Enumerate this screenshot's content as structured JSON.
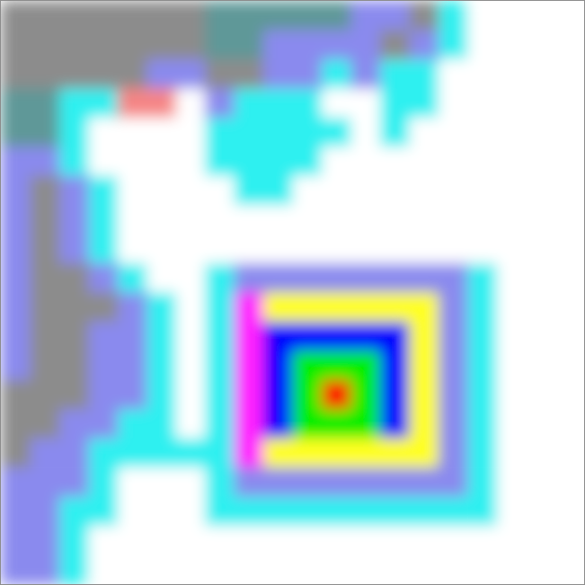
{
  "chart_data": {
    "type": "heatmap",
    "tick_labels": false,
    "colors": [
      "#ffffff",
      "#2ef0f0",
      "#8a8aee",
      "#ff22ff",
      "#ffff22",
      "#8c8c8c",
      "#0000ff",
      "#00ee00",
      "#ff0000",
      "#5f9898",
      "#f58585"
    ],
    "cells": [
      [
        5,
        5,
        5,
        5,
        5,
        5,
        5,
        9,
        9,
        9,
        9,
        9,
        2,
        2,
        5,
        1,
        0,
        0,
        0,
        0
      ],
      [
        5,
        5,
        5,
        5,
        5,
        5,
        5,
        9,
        9,
        2,
        2,
        2,
        2,
        5,
        2,
        1,
        0,
        0,
        0,
        0
      ],
      [
        5,
        5,
        5,
        5,
        5,
        2,
        2,
        5,
        5,
        2,
        2,
        1,
        2,
        1,
        1,
        0,
        0,
        0,
        0,
        0
      ],
      [
        9,
        9,
        1,
        1,
        10,
        10,
        0,
        2,
        1,
        1,
        1,
        0,
        0,
        1,
        1,
        0,
        0,
        0,
        0,
        0
      ],
      [
        9,
        9,
        1,
        0,
        0,
        0,
        0,
        1,
        1,
        1,
        1,
        1,
        0,
        1,
        0,
        0,
        0,
        0,
        0,
        0
      ],
      [
        2,
        2,
        1,
        0,
        0,
        0,
        0,
        1,
        1,
        1,
        1,
        0,
        0,
        0,
        0,
        0,
        0,
        0,
        0,
        0
      ],
      [
        2,
        5,
        2,
        1,
        0,
        0,
        0,
        0,
        1,
        1,
        0,
        0,
        0,
        0,
        0,
        0,
        0,
        0,
        0,
        0
      ],
      [
        2,
        5,
        2,
        1,
        0,
        0,
        0,
        0,
        0,
        0,
        0,
        0,
        0,
        0,
        0,
        0,
        0,
        0,
        0,
        0
      ],
      [
        2,
        5,
        2,
        1,
        0,
        0,
        0,
        0,
        0,
        0,
        0,
        0,
        0,
        0,
        0,
        0,
        0,
        0,
        0,
        0
      ],
      [
        2,
        5,
        5,
        2,
        1,
        0,
        0,
        1,
        2,
        2,
        2,
        2,
        2,
        2,
        2,
        2,
        1,
        0,
        0,
        0
      ],
      [
        2,
        5,
        5,
        5,
        2,
        1,
        0,
        1,
        3,
        4,
        4,
        4,
        4,
        4,
        4,
        2,
        1,
        0,
        0,
        0
      ],
      [
        2,
        5,
        5,
        2,
        2,
        1,
        0,
        1,
        3,
        6,
        6,
        6,
        6,
        6,
        4,
        2,
        1,
        0,
        0,
        0
      ],
      [
        2,
        5,
        5,
        2,
        2,
        1,
        0,
        1,
        3,
        6,
        7,
        7,
        7,
        6,
        4,
        2,
        1,
        0,
        0,
        0
      ],
      [
        5,
        5,
        5,
        2,
        2,
        1,
        0,
        1,
        3,
        6,
        7,
        8,
        7,
        6,
        4,
        2,
        1,
        0,
        0,
        0
      ],
      [
        5,
        5,
        2,
        2,
        1,
        1,
        0,
        1,
        3,
        6,
        7,
        7,
        7,
        6,
        4,
        2,
        1,
        0,
        0,
        0
      ],
      [
        5,
        2,
        2,
        1,
        1,
        1,
        1,
        1,
        3,
        4,
        4,
        4,
        4,
        4,
        4,
        2,
        1,
        0,
        0,
        0
      ],
      [
        2,
        2,
        2,
        1,
        0,
        0,
        0,
        1,
        2,
        2,
        2,
        2,
        2,
        2,
        2,
        2,
        1,
        0,
        0,
        0
      ],
      [
        2,
        2,
        1,
        1,
        0,
        0,
        0,
        1,
        1,
        1,
        1,
        1,
        1,
        1,
        1,
        1,
        1,
        0,
        0,
        0
      ],
      [
        2,
        2,
        1,
        0,
        0,
        0,
        0,
        0,
        0,
        0,
        0,
        0,
        0,
        0,
        0,
        0,
        0,
        0,
        0,
        0
      ],
      [
        2,
        2,
        1,
        0,
        0,
        0,
        0,
        0,
        0,
        0,
        0,
        0,
        0,
        0,
        0,
        0,
        0,
        0,
        0,
        0
      ]
    ]
  }
}
